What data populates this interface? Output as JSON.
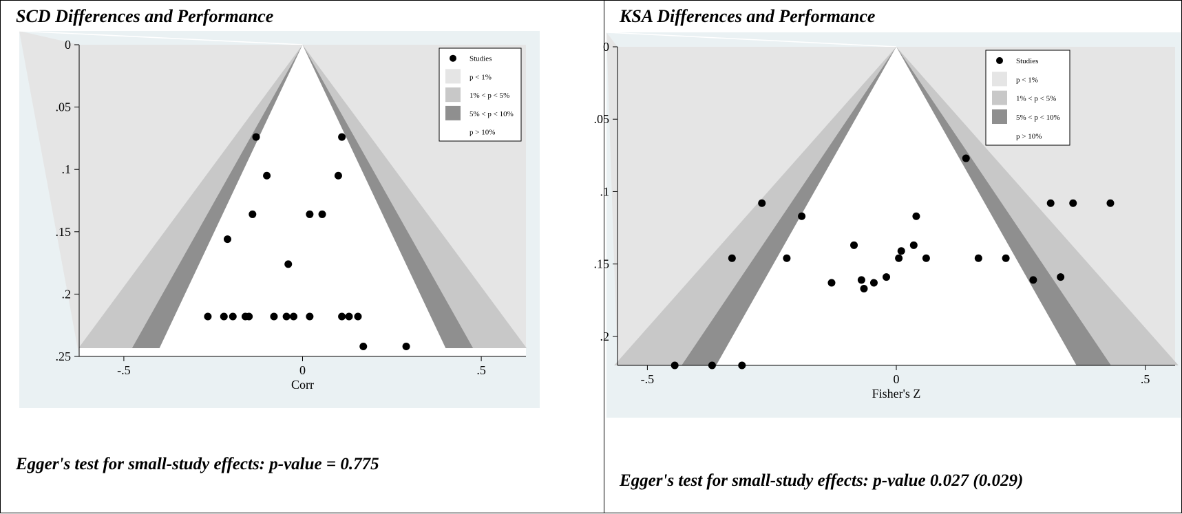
{
  "colors": {
    "outer_background": "#eaf1f3",
    "plot_background": "#e5e5e5",
    "region_p_lt_1": "#e5e5e5",
    "region_1_5": "#c8c8c8",
    "region_5_10": "#8f8f8f",
    "region_gt_10": "#ffffff",
    "marker": "#000000"
  },
  "legend": {
    "studies": "Studies",
    "p1": "p < 1%",
    "p1_5": "1% < p < 5%",
    "p5_10": "5% < p < 10%",
    "p10": "p > 10%"
  },
  "chart_data": [
    {
      "type": "scatter",
      "title": "SCD Differences and Performance",
      "xlabel": "Corr",
      "ylabel": "",
      "xlim": [
        -0.625,
        0.625
      ],
      "ylim": [
        0,
        0.25
      ],
      "y_reversed": true,
      "xticks": [
        "-.5",
        "0",
        ".5"
      ],
      "xtick_values": [
        -0.5,
        0,
        0.5
      ],
      "yticks": [
        "0",
        ".05",
        ".1",
        ".15",
        ".2",
        ".25"
      ],
      "ytick_values": [
        0,
        0.05,
        0.1,
        0.15,
        0.2,
        0.25
      ],
      "funnel_center": 0,
      "legend_position": "top-right",
      "series": [
        {
          "name": "Studies",
          "points": [
            {
              "x": -0.13,
              "y": 0.074
            },
            {
              "x": 0.11,
              "y": 0.074
            },
            {
              "x": -0.1,
              "y": 0.105
            },
            {
              "x": 0.1,
              "y": 0.105
            },
            {
              "x": -0.14,
              "y": 0.136
            },
            {
              "x": 0.02,
              "y": 0.136
            },
            {
              "x": 0.055,
              "y": 0.136
            },
            {
              "x": -0.21,
              "y": 0.156
            },
            {
              "x": -0.04,
              "y": 0.176
            },
            {
              "x": -0.265,
              "y": 0.218
            },
            {
              "x": -0.22,
              "y": 0.218
            },
            {
              "x": -0.195,
              "y": 0.218
            },
            {
              "x": -0.16,
              "y": 0.218
            },
            {
              "x": -0.15,
              "y": 0.218
            },
            {
              "x": -0.08,
              "y": 0.218
            },
            {
              "x": -0.045,
              "y": 0.218
            },
            {
              "x": -0.025,
              "y": 0.218
            },
            {
              "x": 0.02,
              "y": 0.218
            },
            {
              "x": 0.11,
              "y": 0.218
            },
            {
              "x": 0.13,
              "y": 0.218
            },
            {
              "x": 0.155,
              "y": 0.218
            },
            {
              "x": 0.17,
              "y": 0.242
            },
            {
              "x": 0.29,
              "y": 0.242
            }
          ]
        }
      ],
      "note": "Egger's test for small-study effects:  p-value = 0.775"
    },
    {
      "type": "scatter",
      "title": "KSA Differences and Performance",
      "xlabel": "Fisher's Z",
      "ylabel": "",
      "xlim": [
        -0.56,
        0.56
      ],
      "ylim": [
        0,
        0.22
      ],
      "y_reversed": true,
      "xticks": [
        "-.5",
        "0",
        ".5"
      ],
      "xtick_values": [
        -0.5,
        0,
        0.5
      ],
      "yticks": [
        "0",
        ".05",
        ".1",
        ".15",
        ".2"
      ],
      "ytick_values": [
        0,
        0.05,
        0.1,
        0.15,
        0.2
      ],
      "funnel_center": 0,
      "legend_position": "top-right",
      "series": [
        {
          "name": "Studies",
          "points": [
            {
              "x": 0.14,
              "y": 0.077
            },
            {
              "x": -0.27,
              "y": 0.108
            },
            {
              "x": 0.31,
              "y": 0.108
            },
            {
              "x": 0.355,
              "y": 0.108
            },
            {
              "x": 0.43,
              "y": 0.108
            },
            {
              "x": -0.19,
              "y": 0.117
            },
            {
              "x": 0.04,
              "y": 0.117
            },
            {
              "x": -0.085,
              "y": 0.137
            },
            {
              "x": 0.035,
              "y": 0.137
            },
            {
              "x": 0.01,
              "y": 0.141
            },
            {
              "x": -0.33,
              "y": 0.146
            },
            {
              "x": -0.22,
              "y": 0.146
            },
            {
              "x": 0.005,
              "y": 0.146
            },
            {
              "x": 0.06,
              "y": 0.146
            },
            {
              "x": 0.165,
              "y": 0.146
            },
            {
              "x": 0.22,
              "y": 0.146
            },
            {
              "x": -0.02,
              "y": 0.159
            },
            {
              "x": 0.33,
              "y": 0.159
            },
            {
              "x": -0.07,
              "y": 0.161
            },
            {
              "x": 0.275,
              "y": 0.161
            },
            {
              "x": -0.13,
              "y": 0.163
            },
            {
              "x": -0.045,
              "y": 0.163
            },
            {
              "x": -0.065,
              "y": 0.167
            },
            {
              "x": -0.445,
              "y": 0.22
            },
            {
              "x": -0.37,
              "y": 0.22
            },
            {
              "x": -0.31,
              "y": 0.22
            }
          ]
        }
      ],
      "note": "Egger's test for small-study effects:  p-value 0.027 (0.029)"
    }
  ]
}
